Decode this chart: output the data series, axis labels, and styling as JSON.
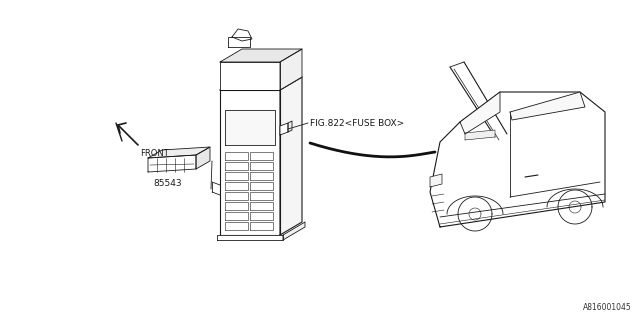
{
  "bg_color": "#ffffff",
  "line_color": "#1a1a1a",
  "text_color": "#1a1a1a",
  "diagram_id": "A816001045",
  "part_number": "85543",
  "fuse_box_label": "FIG.822<FUSE BOX>",
  "front_label": "FRONT",
  "fig_width": 6.4,
  "fig_height": 3.2,
  "dpi": 100
}
